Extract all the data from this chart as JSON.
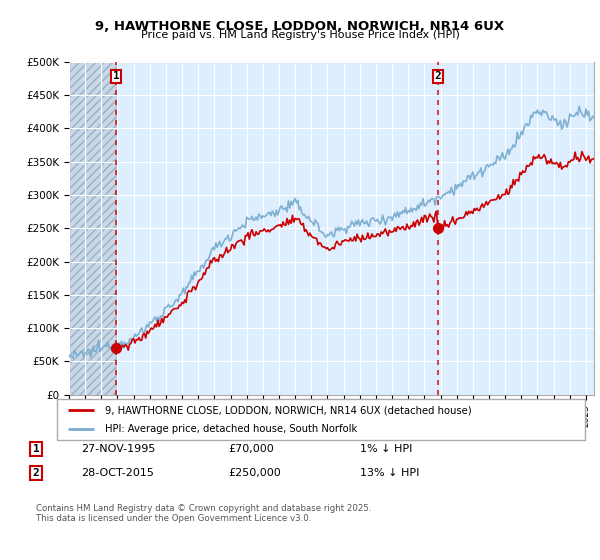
{
  "title_line1": "9, HAWTHORNE CLOSE, LODDON, NORWICH, NR14 6UX",
  "title_line2": "Price paid vs. HM Land Registry's House Price Index (HPI)",
  "legend_line1": "9, HAWTHORNE CLOSE, LODDON, NORWICH, NR14 6UX (detached house)",
  "legend_line2": "HPI: Average price, detached house, South Norfolk",
  "annotation1_date": "27-NOV-1995",
  "annotation1_price": "£70,000",
  "annotation1_hpi": "1% ↓ HPI",
  "annotation2_date": "28-OCT-2015",
  "annotation2_price": "£250,000",
  "annotation2_hpi": "13% ↓ HPI",
  "footer": "Contains HM Land Registry data © Crown copyright and database right 2025.\nThis data is licensed under the Open Government Licence v3.0.",
  "sale1_year": 1995.92,
  "sale1_value": 70000,
  "sale2_year": 2015.83,
  "sale2_value": 250000,
  "red_color": "#cc0000",
  "blue_color": "#7aadcf",
  "plot_bg_color": "#ddeeff",
  "grid_color": "#ffffff",
  "hatch_color": "#bbbbbb",
  "ylim_min": 0,
  "ylim_max": 500000,
  "xlim_min": 1993.0,
  "xlim_max": 2025.5
}
